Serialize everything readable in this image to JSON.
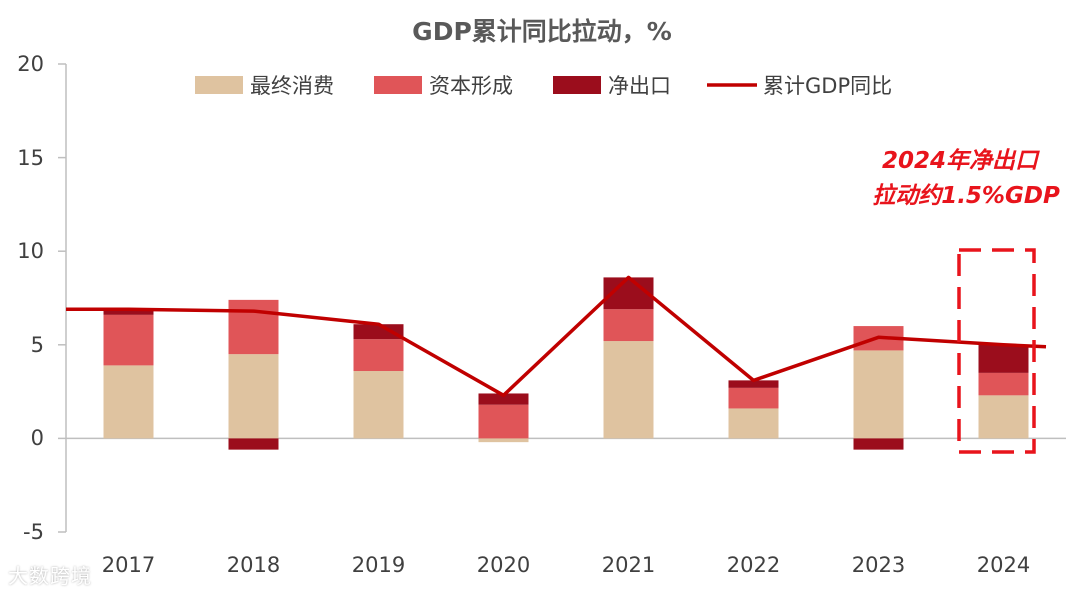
{
  "chart_data": {
    "type": "bar",
    "stacked": true,
    "title": "GDP累计同比拉动，%",
    "categories": [
      "2017",
      "2018",
      "2019",
      "2020",
      "2021",
      "2022",
      "2023",
      "2024"
    ],
    "series": [
      {
        "name": "最终消费",
        "kind": "bar",
        "color": "#dfc3a0",
        "values": [
          3.9,
          4.5,
          3.6,
          -0.2,
          5.2,
          1.6,
          4.7,
          2.3
        ]
      },
      {
        "name": "资本形成",
        "kind": "bar",
        "color": "#e05558",
        "values": [
          2.7,
          2.9,
          1.7,
          1.8,
          1.7,
          1.1,
          1.3,
          1.2
        ]
      },
      {
        "name": "净出口",
        "kind": "bar",
        "color": "#9b0d1c",
        "values": [
          0.3,
          -0.6,
          0.8,
          0.6,
          1.7,
          0.4,
          -0.6,
          1.5
        ]
      },
      {
        "name": "累计GDP同比",
        "kind": "line",
        "color": "#c00000",
        "values": [
          6.9,
          6.8,
          6.1,
          2.3,
          8.6,
          3.1,
          5.4,
          5.0
        ]
      }
    ],
    "ylim": [
      -5,
      20
    ],
    "yticks": [
      "20",
      "15",
      "10",
      "5",
      "0",
      "-5"
    ],
    "xlabel": "",
    "ylabel": "",
    "legend_position": "top",
    "annotation": {
      "lines": [
        "2024年净出口",
        "拉动约1.5%GDP"
      ],
      "highlight_category": "2024"
    }
  },
  "watermark": "大数跨境"
}
